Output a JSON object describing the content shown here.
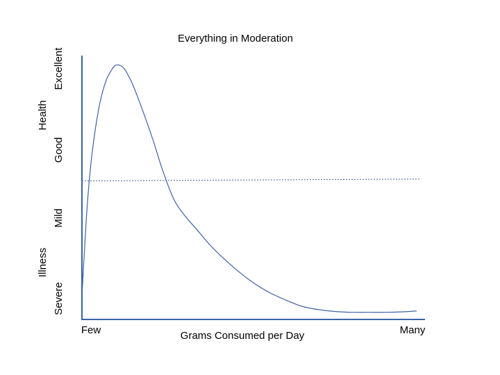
{
  "chart_data": {
    "type": "line",
    "title": "Everything in Moderation",
    "xlabel": "Grams Consumed per Day",
    "ylabel_group_top": "Health",
    "ylabel_group_bottom": "Illness",
    "x_ticks": [
      "Few",
      "Many"
    ],
    "y_ticks": [
      "Severe",
      "Mild",
      "Good",
      "Excellent"
    ],
    "xlim": [
      0,
      100
    ],
    "ylim": [
      0,
      100
    ],
    "grid": false,
    "series": [
      {
        "color": "#3b62a6",
        "x": [
          0,
          1.5,
          3,
          5,
          7,
          9,
          10.5,
          12.5,
          15,
          18,
          21,
          24,
          27,
          30,
          34,
          38,
          42,
          46,
          50,
          55,
          60,
          65,
          70,
          75,
          80,
          85,
          90,
          95,
          99
        ],
        "y": [
          9,
          42,
          63,
          80,
          90,
          95,
          96.5,
          95,
          89,
          79,
          68,
          56,
          46,
          40,
          34,
          28,
          23,
          18.5,
          14.5,
          10.5,
          7.5,
          5,
          3.7,
          3,
          2.7,
          2.7,
          2.7,
          2.9,
          3.2
        ]
      },
      {
        "name": "",
        "style": "dotted",
        "color": "#3b62a6",
        "x": [
          0,
          100
        ],
        "y": [
          52.5,
          53.2
        ]
      }
    ]
  }
}
